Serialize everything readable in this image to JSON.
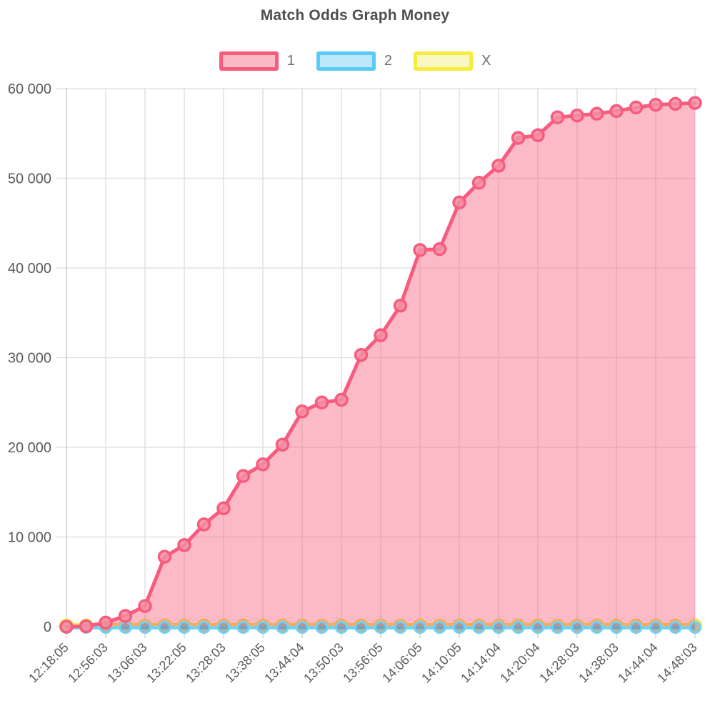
{
  "title": "Match Odds Graph Money",
  "legend": {
    "items": [
      {
        "label": "1",
        "fill": "#FAB9C5",
        "border": "#F85C7C"
      },
      {
        "label": "2",
        "fill": "#BFE7FA",
        "border": "#5BCBF5"
      },
      {
        "label": "X",
        "fill": "#FAF8C2",
        "border": "#F6EC3F"
      }
    ]
  },
  "chart_data": {
    "type": "area",
    "title": "Match Odds Graph Money",
    "xlabel": "",
    "ylabel": "",
    "ylim": [
      0,
      60000
    ],
    "grid": true,
    "legend_position": "top",
    "y_tick_values": [
      0,
      10000,
      20000,
      30000,
      40000,
      50000,
      60000
    ],
    "y_tick_labels": [
      "0",
      "10 000",
      "20 000",
      "30 000",
      "40 000",
      "50 000",
      "60 000"
    ],
    "x_tick_labels": [
      "12:18:05",
      "12:56:03",
      "13:06:03",
      "13:22:05",
      "13:28:03",
      "13:38:05",
      "13:44:04",
      "13:50:03",
      "13:56:05",
      "14:06:05",
      "14:10:05",
      "14:14:04",
      "14:20:04",
      "14:28:03",
      "14:38:03",
      "14:44:04",
      "14:48:03"
    ],
    "points_per_x_tick": 2,
    "series": [
      {
        "name": "1",
        "line_color": "#F75C7E",
        "marker_fill": "#F58FA3",
        "area_fill": "rgba(246,90,120,0.42)",
        "values": [
          0,
          50,
          450,
          1200,
          2300,
          7800,
          9100,
          11400,
          13200,
          16800,
          18100,
          20300,
          24000,
          25000,
          25300,
          30300,
          32500,
          35800,
          42000,
          42100,
          47300,
          49500,
          51400,
          54500,
          54800,
          56800,
          57000,
          57200,
          57500,
          57900,
          58200,
          58300,
          58400
        ]
      },
      {
        "name": "2",
        "line_color": "#6FD1F6",
        "marker_fill": "rgba(110,110,150,0.45)",
        "values": [
          0,
          0,
          0,
          0,
          0,
          0,
          0,
          0,
          0,
          0,
          0,
          0,
          0,
          0,
          0,
          0,
          0,
          0,
          0,
          0,
          0,
          0,
          0,
          0,
          0,
          0,
          0,
          0,
          0,
          0,
          0,
          0,
          0
        ]
      },
      {
        "name": "X",
        "line_color": "#F5E94F",
        "marker_fill": "rgba(248,244,160,0.9)",
        "values": [
          0,
          0,
          0,
          0,
          0,
          0,
          0,
          0,
          0,
          0,
          0,
          0,
          0,
          0,
          0,
          0,
          0,
          0,
          0,
          0,
          0,
          0,
          0,
          0,
          0,
          0,
          0,
          0,
          0,
          0,
          0,
          0,
          0
        ]
      }
    ],
    "axis_text_color": "#5a5a5c",
    "gridline_color": "#e2e2e2",
    "axis_line_color": "#cfcfcf"
  }
}
